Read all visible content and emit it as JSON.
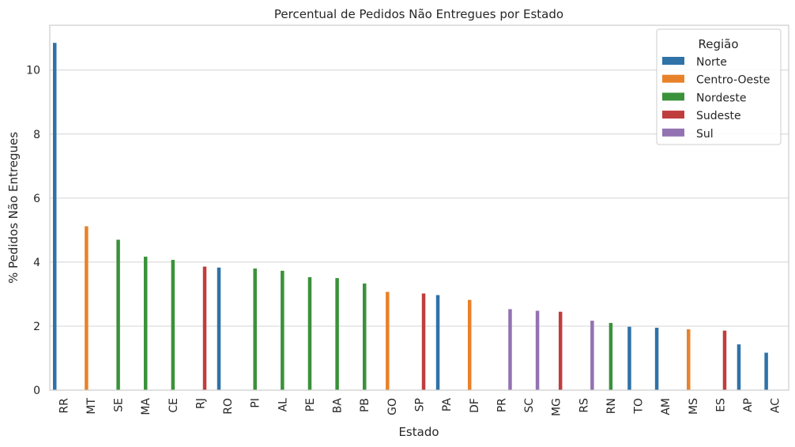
{
  "chart_data": {
    "type": "bar",
    "title": "Percentual de Pedidos Não Entregues por Estado",
    "xlabel": "Estado",
    "ylabel": "% Pedidos Não Entregues",
    "ylim": [
      0,
      11.4
    ],
    "yticks": [
      "0",
      "2",
      "4",
      "6",
      "8",
      "10"
    ],
    "grid": true,
    "legend": {
      "title": "Região",
      "placement": "top-right",
      "entries": [
        {
          "name": "Norte",
          "color": "#2f72a8"
        },
        {
          "name": "Centro-Oeste",
          "color": "#e8822a"
        },
        {
          "name": "Nordeste",
          "color": "#3a923a"
        },
        {
          "name": "Sudeste",
          "color": "#c03d3e"
        },
        {
          "name": "Sul",
          "color": "#9372b2"
        }
      ]
    },
    "categories": [
      "RR",
      "MT",
      "SE",
      "MA",
      "CE",
      "RJ",
      "RO",
      "PI",
      "AL",
      "PE",
      "BA",
      "PB",
      "GO",
      "SP",
      "PA",
      "DF",
      "PR",
      "SC",
      "MG",
      "RS",
      "RN",
      "TO",
      "AM",
      "MS",
      "ES",
      "AP",
      "AC"
    ],
    "series": [
      {
        "name": "Norte",
        "values": [
          10.85,
          null,
          null,
          null,
          null,
          null,
          3.83,
          null,
          null,
          null,
          null,
          null,
          null,
          null,
          2.97,
          null,
          null,
          null,
          null,
          null,
          null,
          1.98,
          1.95,
          null,
          null,
          1.43,
          1.17
        ]
      },
      {
        "name": "Centro-Oeste",
        "values": [
          null,
          5.12,
          null,
          null,
          null,
          null,
          null,
          null,
          null,
          null,
          null,
          null,
          3.07,
          null,
          null,
          2.82,
          null,
          null,
          null,
          null,
          null,
          null,
          null,
          1.9,
          null,
          null,
          null
        ]
      },
      {
        "name": "Nordeste",
        "values": [
          null,
          null,
          4.7,
          4.17,
          4.07,
          null,
          null,
          3.8,
          3.73,
          3.53,
          3.5,
          3.33,
          null,
          null,
          null,
          null,
          null,
          null,
          null,
          null,
          2.1,
          null,
          null,
          null,
          null,
          null,
          null
        ]
      },
      {
        "name": "Sudeste",
        "values": [
          null,
          null,
          null,
          null,
          null,
          3.86,
          null,
          null,
          null,
          null,
          null,
          null,
          null,
          3.02,
          null,
          null,
          null,
          null,
          2.45,
          null,
          null,
          null,
          null,
          null,
          1.86,
          null,
          null
        ]
      },
      {
        "name": "Sul",
        "values": [
          null,
          null,
          null,
          null,
          null,
          null,
          null,
          null,
          null,
          null,
          null,
          null,
          null,
          null,
          null,
          null,
          2.53,
          2.48,
          null,
          2.17,
          null,
          null,
          null,
          null,
          null,
          null,
          null
        ]
      }
    ]
  }
}
